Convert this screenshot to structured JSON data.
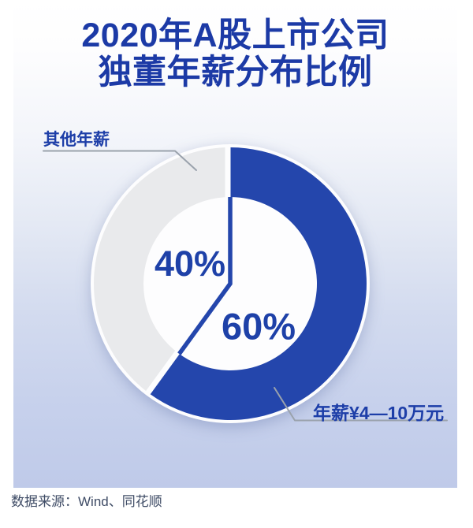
{
  "title": {
    "line1": "2020年A股上市公司",
    "line2": "独董年薪分布比例"
  },
  "chart_data": {
    "type": "pie",
    "subtype": "donut",
    "title": "2020年A股上市公司独董年薪分布比例",
    "unit": "%",
    "direction": "clockwise",
    "start_angle_deg": 0,
    "slices": [
      {
        "label": "年薪¥4—10万元",
        "value": 60,
        "display": "60%",
        "color": "#2446ac"
      },
      {
        "label": "其他年薪",
        "value": 40,
        "display": "40%",
        "color": "#e9eaec"
      }
    ],
    "legend_position": "callout-labels",
    "hole_color": "#fdfdfe"
  },
  "footer": {
    "source": "数据来源：Wind、同花顺"
  },
  "colors": {
    "title_blue": "#1c3aa6",
    "label_blue": "#1d3ea8",
    "percent_blue": "#1e41a8",
    "ring_blue": "#2446ac",
    "slice_gray": "#e9eaec",
    "leader_gray": "#9aa2ac",
    "source_text": "#3f4c66",
    "panel_gradient_top": "#ffffff",
    "panel_gradient_bottom": "#bfcae9"
  }
}
